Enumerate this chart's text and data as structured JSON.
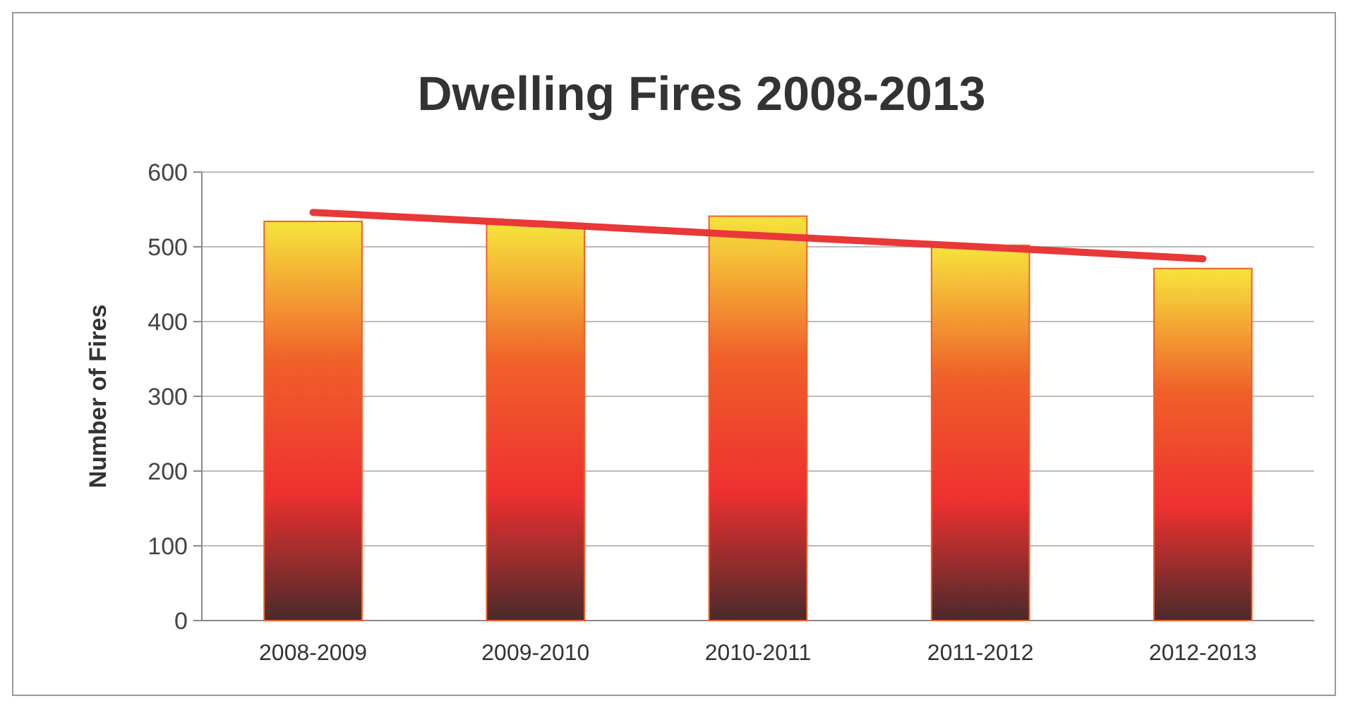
{
  "chart_data": {
    "type": "bar",
    "title": "Dwelling Fires 2008-2013",
    "ylabel": "Number of Fires",
    "categories": [
      "2008-2009",
      "2009-2010",
      "2010-2011",
      "2011-2012",
      "2012-2013"
    ],
    "series": [
      {
        "color": "#f0602a",
        "values": [
          534,
          530,
          541,
          502,
          471
        ]
      },
      {
        "type": "line",
        "color": "#e83838",
        "values": [
          546,
          531,
          515,
          500,
          484
        ]
      }
    ],
    "ylim": [
      0,
      600
    ],
    "yticks": [
      0,
      100,
      200,
      300,
      400,
      500,
      600
    ],
    "grid": "y"
  }
}
